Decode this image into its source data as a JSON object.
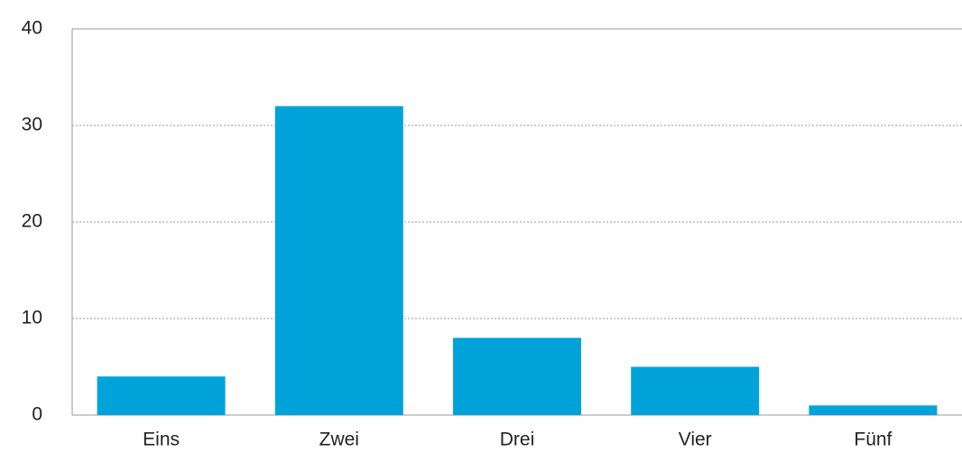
{
  "chart_data": {
    "type": "bar",
    "categories": [
      "Eins",
      "Zwei",
      "Drei",
      "Vier",
      "Fünf"
    ],
    "values": [
      4,
      32,
      8,
      5,
      1
    ],
    "color": "#00a3d9",
    "ylim": [
      0,
      40
    ],
    "yticks": [
      0,
      10,
      20,
      30,
      40
    ],
    "grid": true
  }
}
